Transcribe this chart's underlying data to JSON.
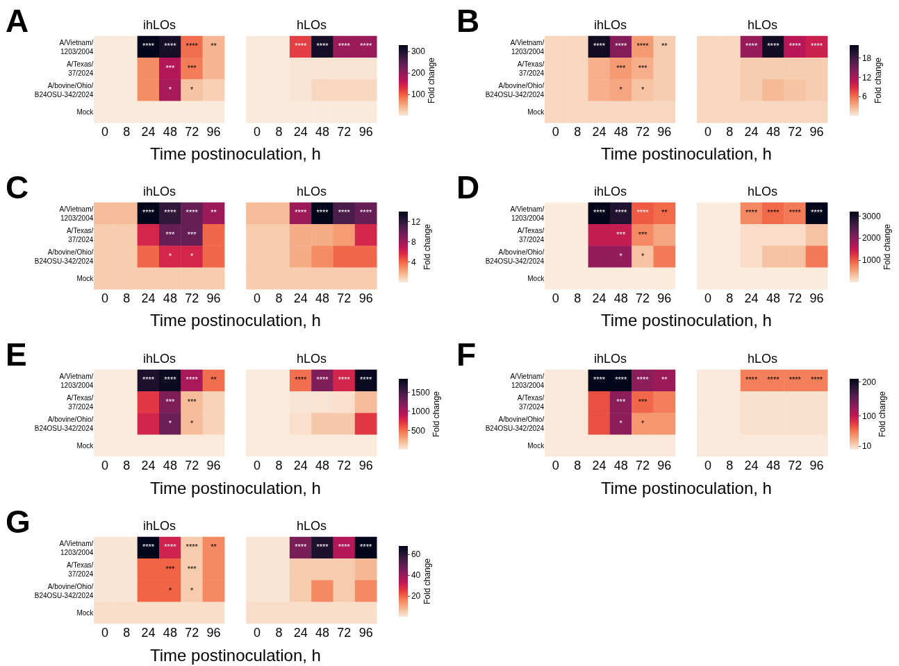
{
  "chart_data": [
    {
      "type": "heatmap",
      "annotations": [
        "A",
        "ihLOs",
        "hLOs"
      ],
      "xlabel": "Time postinoculation, h",
      "categories": [
        "0",
        "8",
        "24",
        "48",
        "72",
        "96",
        null,
        "0",
        "8",
        "24",
        "48",
        "72",
        "96"
      ],
      "y_categories": [
        "A/Vietnam/1203/2004",
        "A/Texas/37/2024",
        "A/bovine/Ohio/B24OSU-342/2024",
        "Mock"
      ],
      "clim": [
        0,
        330
      ],
      "cticks": [
        100,
        200,
        300
      ],
      "clabel": "Fold change",
      "cells": [
        [
          1,
          1,
          330,
          310,
          90,
          40,
          null,
          1,
          1,
          120,
          310,
          190,
          190
        ],
        [
          1,
          1,
          70,
          170,
          80,
          40,
          null,
          1,
          1,
          5,
          5,
          5,
          5
        ],
        [
          1,
          1,
          70,
          180,
          30,
          20,
          null,
          1,
          1,
          5,
          15,
          15,
          15
        ],
        [
          1,
          1,
          1,
          1,
          1,
          1,
          null,
          1,
          1,
          1,
          1,
          1,
          1
        ]
      ],
      "cell_labels": [
        [
          null,
          null,
          "****",
          "****",
          "****",
          "**",
          null,
          null,
          null,
          "****",
          "****",
          "****",
          "****"
        ],
        [
          null,
          null,
          null,
          "***",
          "***",
          null,
          null,
          null,
          null,
          null,
          null,
          null,
          null
        ],
        [
          null,
          null,
          null,
          "*",
          "*",
          null,
          null,
          null,
          null,
          null,
          null,
          null,
          null
        ],
        [
          null,
          null,
          null,
          null,
          null,
          null,
          null,
          null,
          null,
          null,
          null,
          null,
          null
        ]
      ]
    },
    {
      "type": "heatmap",
      "annotations": [
        "B",
        "ihLOs",
        "hLOs"
      ],
      "xlabel": "Time postinoculation, h",
      "categories": [
        "0",
        "8",
        "24",
        "48",
        "72",
        "96",
        null,
        "0",
        "8",
        "24",
        "48",
        "72",
        "96"
      ],
      "y_categories": [
        "A/Vietnam/1203/2004",
        "A/Texas/37/2024",
        "A/bovine/Ohio/B24OSU-342/2024",
        "Mock"
      ],
      "clim": [
        0,
        22
      ],
      "cticks": [
        6,
        12,
        18
      ],
      "clabel": "Fold change",
      "cells": [
        [
          1,
          1,
          21,
          14,
          4,
          1.5,
          null,
          1,
          1,
          13,
          21,
          11,
          10
        ],
        [
          1,
          1,
          3,
          4,
          3,
          1.5,
          null,
          1,
          1,
          1.5,
          1.5,
          1.5,
          1.5
        ],
        [
          1,
          1,
          3,
          3.5,
          2,
          1.5,
          null,
          1,
          1,
          1.5,
          2.5,
          2,
          1.5
        ],
        [
          1,
          1,
          1,
          1,
          1,
          1,
          null,
          1,
          1,
          1,
          1,
          1,
          1
        ]
      ],
      "cell_labels": [
        [
          null,
          null,
          "****",
          "****",
          "****",
          "**",
          null,
          null,
          null,
          "****",
          "****",
          "****",
          "****"
        ],
        [
          null,
          null,
          null,
          "***",
          "***",
          null,
          null,
          null,
          null,
          null,
          null,
          null,
          null
        ],
        [
          null,
          null,
          null,
          "*",
          "*",
          null,
          null,
          null,
          null,
          null,
          null,
          null,
          null
        ],
        [
          null,
          null,
          null,
          null,
          null,
          null,
          null,
          null,
          null,
          null,
          null,
          null,
          null
        ]
      ]
    },
    {
      "type": "heatmap",
      "annotations": [
        "C",
        "ihLOs",
        "hLOs"
      ],
      "xlabel": "Time postinoculation, h",
      "categories": [
        "0",
        "8",
        "24",
        "48",
        "72",
        "96",
        null,
        "0",
        "8",
        "24",
        "48",
        "72",
        "96"
      ],
      "y_categories": [
        "A/Vietnam/1203/2004",
        "A/Texas/37/2024",
        "A/bovine/Ohio/B24OSU-342/2024",
        "Mock"
      ],
      "clim": [
        0,
        14
      ],
      "cticks": [
        4,
        8,
        12
      ],
      "clabel": "Fold change",
      "cells": [
        [
          1.5,
          1.5,
          14,
          12,
          10,
          8,
          null,
          1.5,
          1.5,
          8,
          14,
          11,
          10
        ],
        [
          1,
          1,
          6,
          10,
          10,
          4,
          null,
          1,
          1,
          2,
          2,
          2.5,
          6
        ],
        [
          1,
          1,
          4,
          6,
          6,
          4,
          null,
          1,
          1,
          2,
          3,
          4,
          4
        ],
        [
          1,
          1,
          1,
          1,
          1,
          1,
          null,
          1,
          1,
          1,
          1,
          1,
          1
        ]
      ],
      "cell_labels": [
        [
          null,
          null,
          "****",
          "****",
          "****",
          "**",
          null,
          null,
          null,
          "****",
          "****",
          "****",
          "****"
        ],
        [
          null,
          null,
          null,
          "***",
          "***",
          null,
          null,
          null,
          null,
          null,
          null,
          null,
          null
        ],
        [
          null,
          null,
          null,
          "*",
          "*",
          null,
          null,
          null,
          null,
          null,
          null,
          null,
          null
        ],
        [
          null,
          null,
          null,
          null,
          null,
          null,
          null,
          null,
          null,
          null,
          null,
          null,
          null
        ]
      ]
    },
    {
      "type": "heatmap",
      "annotations": [
        "D",
        "ihLOs",
        "hLOs"
      ],
      "xlabel": "Time postinoculation, h",
      "categories": [
        "0",
        "8",
        "24",
        "48",
        "72",
        "96",
        null,
        "0",
        "8",
        "24",
        "48",
        "72",
        "96"
      ],
      "y_categories": [
        "A/Vietnam/1203/2004",
        "A/Texas/37/2024",
        "A/bovine/Ohio/B24OSU-342/2024",
        "Mock"
      ],
      "clim": [
        0,
        3200
      ],
      "cticks": [
        1000,
        2000,
        3000
      ],
      "clabel": "Fold change",
      "cells": [
        [
          1,
          1,
          3200,
          2900,
          1000,
          900,
          null,
          1,
          1,
          700,
          900,
          800,
          3200
        ],
        [
          1,
          1,
          1500,
          1500,
          700,
          500,
          null,
          1,
          1,
          100,
          100,
          100,
          300
        ],
        [
          1,
          1,
          1900,
          1900,
          300,
          800,
          null,
          1,
          1,
          100,
          300,
          300,
          800
        ],
        [
          1,
          1,
          1,
          1,
          1,
          1,
          null,
          1,
          1,
          1,
          1,
          1,
          1
        ]
      ],
      "cell_labels": [
        [
          null,
          null,
          "****",
          "****",
          "****",
          "**",
          null,
          null,
          null,
          "****",
          "****",
          "****",
          "****"
        ],
        [
          null,
          null,
          null,
          "***",
          "***",
          null,
          null,
          null,
          null,
          null,
          null,
          null,
          null
        ],
        [
          null,
          null,
          null,
          "*",
          "*",
          null,
          null,
          null,
          null,
          null,
          null,
          null,
          null
        ],
        [
          null,
          null,
          null,
          null,
          null,
          null,
          null,
          null,
          null,
          null,
          null,
          null,
          null
        ]
      ]
    },
    {
      "type": "heatmap",
      "annotations": [
        "E",
        "ihLOs",
        "hLOs"
      ],
      "xlabel": "Time postinoculation, h",
      "categories": [
        "0",
        "8",
        "24",
        "48",
        "72",
        "96",
        null,
        "0",
        "8",
        "24",
        "48",
        "72",
        "96"
      ],
      "y_categories": [
        "A/Vietnam/1203/2004",
        "A/Texas/37/2024",
        "A/bovine/Ohio/B24OSU-342/2024",
        "Mock"
      ],
      "clim": [
        0,
        1850
      ],
      "cticks": [
        500,
        1000,
        1500
      ],
      "clabel": "Fold change",
      "cells": [
        [
          1,
          1,
          1700,
          1800,
          1000,
          500,
          null,
          1,
          1,
          500,
          1200,
          800,
          1800
        ],
        [
          1,
          1,
          700,
          1200,
          200,
          100,
          null,
          1,
          1,
          30,
          30,
          50,
          200
        ],
        [
          1,
          1,
          800,
          1300,
          200,
          100,
          null,
          1,
          1,
          50,
          150,
          150,
          700
        ],
        [
          1,
          1,
          1,
          1,
          1,
          1,
          null,
          1,
          1,
          1,
          1,
          1,
          1
        ]
      ],
      "cell_labels": [
        [
          null,
          null,
          "****",
          "****",
          "****",
          "**",
          null,
          null,
          null,
          "****",
          "****",
          "****",
          "****"
        ],
        [
          null,
          null,
          null,
          "***",
          "***",
          null,
          null,
          null,
          null,
          null,
          null,
          null,
          null
        ],
        [
          null,
          null,
          null,
          "*",
          "*",
          null,
          null,
          null,
          null,
          null,
          null,
          null,
          null
        ],
        [
          null,
          null,
          null,
          null,
          null,
          null,
          null,
          null,
          null,
          null,
          null,
          null,
          null
        ]
      ]
    },
    {
      "type": "heatmap",
      "annotations": [
        "F",
        "ihLOs",
        "hLOs"
      ],
      "xlabel": "Time postinoculation, h",
      "categories": [
        "0",
        "8",
        "24",
        "48",
        "72",
        "96",
        null,
        "0",
        "8",
        "24",
        "48",
        "72",
        "96"
      ],
      "y_categories": [
        "A/Vietnam/1203/2004",
        "A/Texas/37/2024",
        "A/bovine/Ohio/B24OSU-342/2024",
        "Mock"
      ],
      "clim": [
        0,
        210
      ],
      "cticks": [
        10,
        100,
        200
      ],
      "clabel": "Fold change",
      "cells": [
        [
          1,
          1,
          210,
          210,
          130,
          120,
          null,
          1,
          1,
          50,
          50,
          50,
          50
        ],
        [
          1,
          1,
          70,
          130,
          60,
          50,
          null,
          1,
          1,
          5,
          5,
          5,
          5
        ],
        [
          1,
          1,
          70,
          130,
          40,
          40,
          null,
          1,
          1,
          5,
          5,
          5,
          5
        ],
        [
          1,
          1,
          1,
          1,
          1,
          1,
          null,
          1,
          1,
          1,
          1,
          1,
          1
        ]
      ],
      "cell_labels": [
        [
          null,
          null,
          "****",
          "****",
          "****",
          "**",
          null,
          null,
          null,
          "****",
          "****",
          "****",
          "****"
        ],
        [
          null,
          null,
          null,
          "***",
          "***",
          null,
          null,
          null,
          null,
          null,
          null,
          null,
          null
        ],
        [
          null,
          null,
          null,
          "*",
          "*",
          null,
          null,
          null,
          null,
          null,
          null,
          null,
          null
        ],
        [
          null,
          null,
          null,
          null,
          null,
          null,
          null,
          null,
          null,
          null,
          null,
          null,
          null
        ]
      ]
    },
    {
      "type": "heatmap",
      "annotations": [
        "G",
        "ihLOs",
        "hLOs"
      ],
      "xlabel": "Time postinoculation, h",
      "categories": [
        "0",
        "8",
        "24",
        "48",
        "72",
        "96",
        null,
        "0",
        "8",
        "24",
        "48",
        "72",
        "96"
      ],
      "y_categories": [
        "A/Vietnam/1203/2004",
        "A/Texas/37/2024",
        "A/bovine/Ohio/B24OSU-342/2024",
        "Mock"
      ],
      "clim": [
        0,
        68
      ],
      "cticks": [
        20,
        40,
        60
      ],
      "clabel": "Fold change",
      "cells": [
        [
          1,
          1,
          68,
          30,
          5,
          15,
          null,
          1,
          1,
          45,
          62,
          35,
          68
        ],
        [
          1,
          1,
          20,
          20,
          5,
          15,
          null,
          1,
          1,
          5,
          5,
          5,
          8
        ],
        [
          1,
          1,
          20,
          20,
          5,
          15,
          null,
          1,
          1,
          5,
          15,
          5,
          15
        ],
        [
          2,
          2,
          2,
          2,
          2,
          2,
          null,
          2,
          2,
          2,
          2,
          2,
          2
        ]
      ],
      "cell_labels": [
        [
          null,
          null,
          "****",
          "****",
          "****",
          "**",
          null,
          null,
          null,
          "****",
          "****",
          "****",
          "****"
        ],
        [
          null,
          null,
          null,
          "***",
          "***",
          null,
          null,
          null,
          null,
          null,
          null,
          null,
          null
        ],
        [
          null,
          null,
          null,
          "*",
          "*",
          null,
          null,
          null,
          null,
          null,
          null,
          null,
          null
        ],
        [
          null,
          null,
          null,
          null,
          null,
          null,
          null,
          null,
          null,
          null,
          null,
          null,
          null
        ]
      ]
    }
  ]
}
